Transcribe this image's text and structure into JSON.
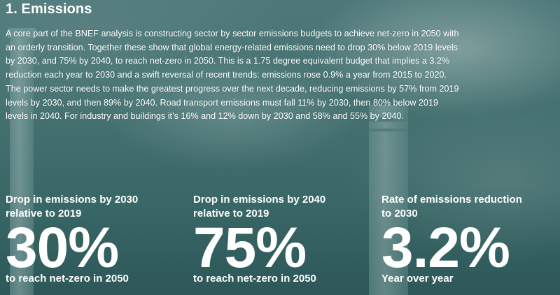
{
  "section": {
    "title": "1. Emissions",
    "paragraph": "A core part of the BNEF analysis is constructing sector by sector emissions budgets to achieve net-zero in 2050 with an orderly transition. Together these show that global energy-related emissions need to drop 30% below 2019 levels by 2030, and 75% by 2040, to reach net-zero in 2050. This is a 1.75 degree equivalent budget that implies a 3.2% reduction each year to 2030 and a swift reversal of recent trends: emissions rose 0.9% a year from 2015 to 2020. The power sector needs to make the greatest progress over the next decade, reducing emissions by 57% from 2019 levels by 2030, and then 89% by 2040. Road transport emissions must fall 11% by 2030, then 80% below 2019 levels in 2040. For industry and buildings it’s 16% and 12% down by 2030 and 58% and 55% by 2040."
  },
  "stats": [
    {
      "label": "Drop in emissions by 2030\nrelative to 2019",
      "value": "30%",
      "sub": "to reach net-zero in 2050"
    },
    {
      "label": "Drop in emissions by 2040\nrelative to 2019",
      "value": "75%",
      "sub": "to reach net-zero in 2050"
    },
    {
      "label": "Rate of emissions reduction\nto 2030",
      "value": "3.2%",
      "sub": "Year over year"
    }
  ],
  "colors": {
    "text": "#ffffff",
    "background": "#3f6f70"
  }
}
